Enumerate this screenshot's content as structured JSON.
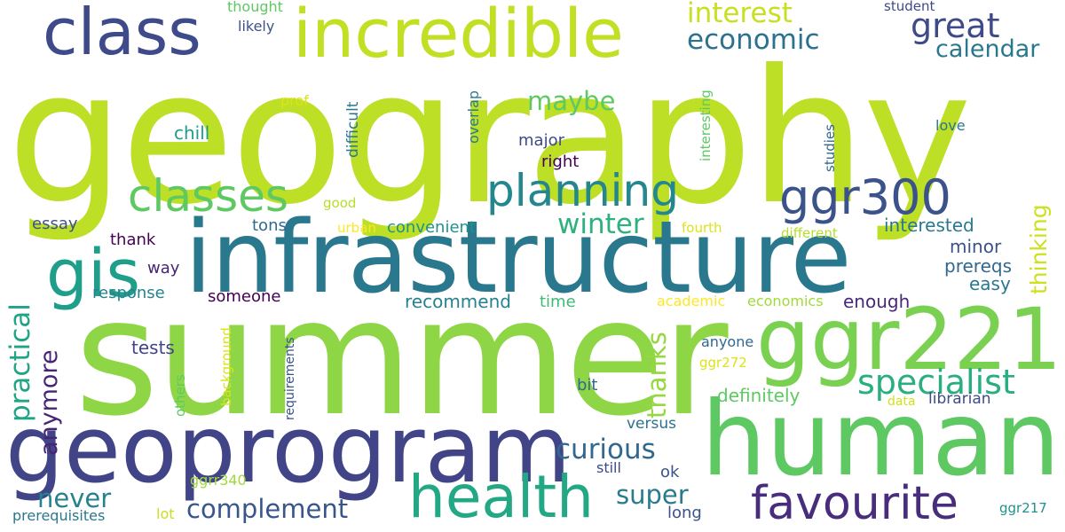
{
  "words": [
    {
      "id": "geography",
      "text": "geography",
      "color": "#bddf26"
    },
    {
      "id": "summer",
      "text": "summer",
      "color": "#8ed645"
    },
    {
      "id": "infrastructure",
      "text": "infrastructure",
      "color": "#2a788e"
    },
    {
      "id": "geoprogram",
      "text": "geoprogram",
      "color": "#414487"
    },
    {
      "id": "human",
      "text": "human",
      "color": "#5ec962"
    },
    {
      "id": "ggr221",
      "text": "ggr221",
      "color": "#7ad151"
    },
    {
      "id": "incredible",
      "text": "incredible",
      "color": "#c2df23"
    },
    {
      "id": "class",
      "text": "class",
      "color": "#3e4a89"
    },
    {
      "id": "health",
      "text": "health",
      "color": "#22a884"
    },
    {
      "id": "planning",
      "text": "planning",
      "color": "#24878e"
    },
    {
      "id": "classes",
      "text": "classes",
      "color": "#5ec962"
    },
    {
      "id": "gis",
      "text": "gis",
      "color": "#1f9e89"
    },
    {
      "id": "ggr300",
      "text": "ggr300",
      "color": "#3b528b"
    },
    {
      "id": "favourite",
      "text": "favourite",
      "color": "#472d7b"
    },
    {
      "id": "specialist",
      "text": "specialist",
      "color": "#29af7f"
    },
    {
      "id": "great",
      "text": "great",
      "color": "#3e4a89"
    },
    {
      "id": "interest",
      "text": "interest",
      "color": "#c8e020"
    },
    {
      "id": "economic",
      "text": "economic",
      "color": "#2c728e"
    },
    {
      "id": "calendar",
      "text": "calendar",
      "color": "#2a788e"
    },
    {
      "id": "winter",
      "text": "winter",
      "color": "#2db27d"
    },
    {
      "id": "curious",
      "text": "curious",
      "color": "#31688e"
    },
    {
      "id": "complement",
      "text": "complement",
      "color": "#39568c"
    },
    {
      "id": "never",
      "text": "never",
      "color": "#26828e"
    },
    {
      "id": "super",
      "text": "super",
      "color": "#287c8e"
    },
    {
      "id": "maybe",
      "text": "maybe",
      "color": "#5ec962"
    },
    {
      "id": "practical",
      "text": "practical",
      "color": "#20a486"
    },
    {
      "id": "anymore",
      "text": "anymore",
      "color": "#482475"
    },
    {
      "id": "thanks",
      "text": "thanks",
      "color": "#95d840"
    },
    {
      "id": "thinking",
      "text": "thinking",
      "color": "#cde11d"
    },
    {
      "id": "recommend",
      "text": "recommend",
      "color": "#26828e"
    },
    {
      "id": "definitely",
      "text": "definitely",
      "color": "#5ec962"
    },
    {
      "id": "chill",
      "text": "chill",
      "color": "#1f9e89"
    },
    {
      "id": "major",
      "text": "major",
      "color": "#3e4a89"
    },
    {
      "id": "right",
      "text": "right",
      "color": "#440154"
    },
    {
      "id": "tons",
      "text": "tons",
      "color": "#31688e"
    },
    {
      "id": "convenient",
      "text": "convenient",
      "color": "#21918c"
    },
    {
      "id": "interested",
      "text": "interested",
      "color": "#2a788e"
    },
    {
      "id": "minor",
      "text": "minor",
      "color": "#3b528b"
    },
    {
      "id": "prereqs",
      "text": "prereqs",
      "color": "#31688e"
    },
    {
      "id": "easy",
      "text": "easy",
      "color": "#2a788e"
    },
    {
      "id": "enough",
      "text": "enough",
      "color": "#482878"
    },
    {
      "id": "essay",
      "text": "essay",
      "color": "#3b528b"
    },
    {
      "id": "thank",
      "text": "thank",
      "color": "#440154"
    },
    {
      "id": "way",
      "text": "way",
      "color": "#482475"
    },
    {
      "id": "response",
      "text": "response",
      "color": "#26828e"
    },
    {
      "id": "someone",
      "text": "someone",
      "color": "#440154"
    },
    {
      "id": "tests",
      "text": "tests",
      "color": "#414487"
    },
    {
      "id": "bit",
      "text": "bit",
      "color": "#31688e"
    },
    {
      "id": "time",
      "text": "time",
      "color": "#3dbc74"
    },
    {
      "id": "academic",
      "text": "academic",
      "color": "#fde725"
    },
    {
      "id": "economics",
      "text": "economics",
      "color": "#a0da39"
    },
    {
      "id": "anyone",
      "text": "anyone",
      "color": "#31688e"
    },
    {
      "id": "ggr272",
      "text": "ggr272",
      "color": "#dde318"
    },
    {
      "id": "librarian",
      "text": "librarian",
      "color": "#3e4a89"
    },
    {
      "id": "data",
      "text": "data",
      "color": "#d0e11c"
    },
    {
      "id": "versus",
      "text": "versus",
      "color": "#2c728e"
    },
    {
      "id": "ok",
      "text": "ok",
      "color": "#3b528b"
    },
    {
      "id": "still",
      "text": "still",
      "color": "#3e4a89"
    },
    {
      "id": "long",
      "text": "long",
      "color": "#3b528b"
    },
    {
      "id": "ggrr340",
      "text": "ggrr340",
      "color": "#9fda3a"
    },
    {
      "id": "prerequisites",
      "text": "prerequisites",
      "color": "#2a788e"
    },
    {
      "id": "lot",
      "text": "lot",
      "color": "#c8e020"
    },
    {
      "id": "ggr217",
      "text": "ggr217",
      "color": "#21918c"
    },
    {
      "id": "thought",
      "text": "thought",
      "color": "#5ec962"
    },
    {
      "id": "likely",
      "text": "likely",
      "color": "#3b528b"
    },
    {
      "id": "student",
      "text": "student",
      "color": "#3e4a89"
    },
    {
      "id": "prof",
      "text": "prof",
      "color": "#dde318"
    },
    {
      "id": "good",
      "text": "good",
      "color": "#b5de2b"
    },
    {
      "id": "urban",
      "text": "urban",
      "color": "#fde725"
    },
    {
      "id": "fourth",
      "text": "fourth",
      "color": "#dde318"
    },
    {
      "id": "different",
      "text": "different",
      "color": "#b5de2b"
    },
    {
      "id": "love",
      "text": "love",
      "color": "#2a788e"
    },
    {
      "id": "difficult",
      "text": "difficult",
      "color": "#2a788e"
    },
    {
      "id": "overlap",
      "text": "overlap",
      "color": "#2a788e"
    },
    {
      "id": "interesting",
      "text": "interesting",
      "color": "#5ec962"
    },
    {
      "id": "studies",
      "text": "studies",
      "color": "#31688e"
    },
    {
      "id": "background",
      "text": "background",
      "color": "#dde318"
    },
    {
      "id": "others",
      "text": "others",
      "color": "#5ec962"
    },
    {
      "id": "requirements",
      "text": "requirements",
      "color": "#3b528b"
    }
  ]
}
